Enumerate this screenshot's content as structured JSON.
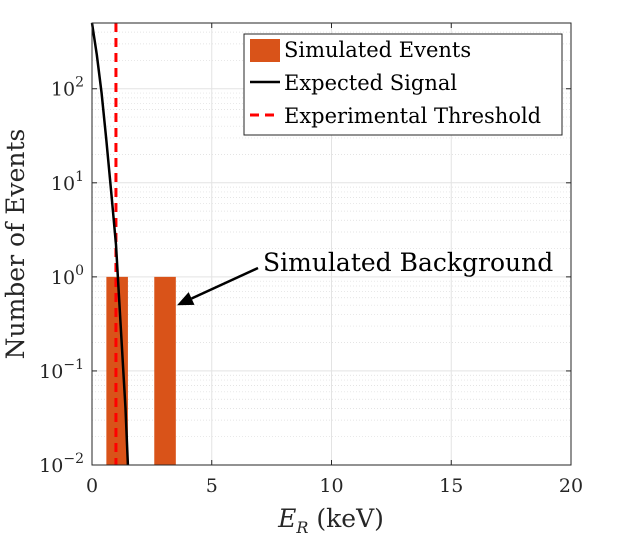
{
  "chart_data": {
    "type": "bar",
    "xlabel": "E_R (keV)",
    "ylabel": "Number of Events",
    "xlim": [
      0,
      20
    ],
    "ylim": [
      0.01,
      500
    ],
    "yscale": "log",
    "grid": true,
    "legend_location": "top-right",
    "x_ticks": [
      0,
      5,
      10,
      15,
      20
    ],
    "x_tick_labels": [
      "0",
      "5",
      "10",
      "15",
      "20"
    ],
    "y_ticks": [
      0.01,
      0.1,
      1,
      10,
      100
    ],
    "y_tick_labels": [
      {
        "base": "10",
        "exp": "−2"
      },
      {
        "base": "10",
        "exp": "−1"
      },
      {
        "base": "10",
        "exp": "0"
      },
      {
        "base": "10",
        "exp": "1"
      },
      {
        "base": "10",
        "exp": "2"
      }
    ],
    "series": [
      {
        "name": "Simulated Events",
        "kind": "bar",
        "color": "#D95319",
        "bars": [
          {
            "x_start": 0.6,
            "x_end": 1.5,
            "value": 1
          },
          {
            "x_start": 2.6,
            "x_end": 3.5,
            "value": 1
          }
        ]
      },
      {
        "name": "Expected Signal",
        "kind": "line",
        "color": "#000000",
        "x": [
          0.0,
          0.2,
          0.4,
          0.6,
          0.8,
          1.0,
          1.2,
          1.4,
          1.5
        ],
        "y": [
          500,
          230,
          90,
          28,
          8,
          2.2,
          0.3,
          0.04,
          0.01
        ]
      },
      {
        "name": "Experimental Threshold",
        "kind": "vline",
        "color": "#FF0000",
        "x": 1.0
      }
    ],
    "annotation": {
      "text": "Simulated Background",
      "arrow_to": {
        "x": 3.55,
        "y": 0.5
      }
    }
  }
}
